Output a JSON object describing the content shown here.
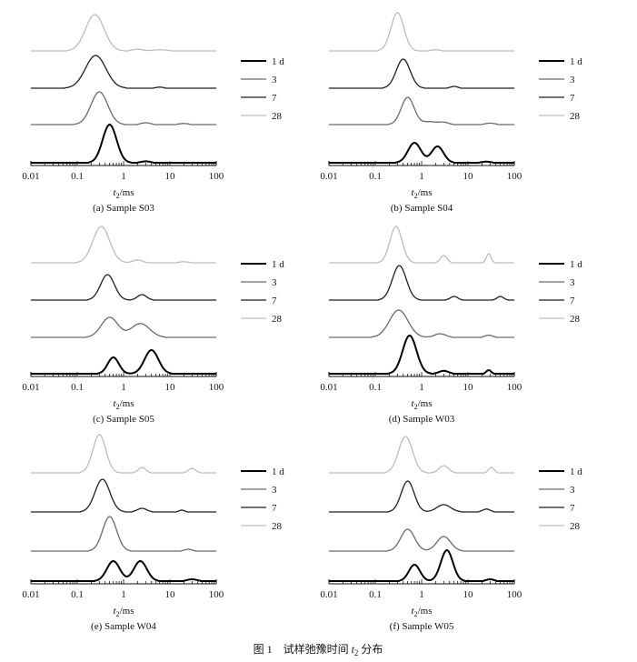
{
  "figure_caption": {
    "prefix": "图 1　试样弛豫时间 ",
    "var": "t",
    "sub": "2",
    "suffix": " 分布"
  },
  "legend": {
    "entries": [
      "1 d",
      "3",
      "7",
      "28"
    ],
    "colors": [
      "#000000",
      "#6a6a6a",
      "#1e1e1e",
      "#bdbdbd"
    ]
  },
  "chart_data": [
    {
      "type": "line",
      "caption": "(a) Sample S03",
      "xscale": "log",
      "xlim": [
        0.01,
        100
      ],
      "xticks": [
        "0.01",
        "0.1",
        "1",
        "10",
        "100"
      ],
      "xlabel": {
        "var": "t",
        "sub": "2",
        "unit": "/ms"
      },
      "legend_position": "right",
      "grid": false,
      "series": [
        {
          "name": "28",
          "peaks": [
            {
              "t2": 0.24,
              "amp": 1.0,
              "w": 0.2
            },
            {
              "t2": 2,
              "amp": 0.05,
              "w": 0.1
            },
            {
              "t2": 6,
              "amp": 0.03,
              "w": 0.15
            }
          ]
        },
        {
          "name": "7",
          "peaks": [
            {
              "t2": 0.25,
              "amp": 0.9,
              "w": 0.22
            },
            {
              "t2": 6,
              "amp": 0.03,
              "w": 0.08
            }
          ]
        },
        {
          "name": "3",
          "peaks": [
            {
              "t2": 0.3,
              "amp": 0.9,
              "w": 0.18
            },
            {
              "t2": 3,
              "amp": 0.05,
              "w": 0.1
            },
            {
              "t2": 20,
              "amp": 0.03,
              "w": 0.1
            }
          ]
        },
        {
          "name": "1 d",
          "peaks": [
            {
              "t2": 0.5,
              "amp": 1.05,
              "w": 0.15
            },
            {
              "t2": 3,
              "amp": 0.04,
              "w": 0.1
            }
          ]
        }
      ]
    },
    {
      "type": "line",
      "caption": "(b) Sample S04",
      "xscale": "log",
      "xlim": [
        0.01,
        100
      ],
      "xticks": [
        "0.01",
        "0.1",
        "1",
        "10",
        "100"
      ],
      "xlabel": {
        "var": "t",
        "sub": "2",
        "unit": "/ms"
      },
      "legend_position": "right",
      "grid": false,
      "series": [
        {
          "name": "28",
          "peaks": [
            {
              "t2": 0.3,
              "amp": 1.05,
              "w": 0.14
            },
            {
              "t2": 2,
              "amp": 0.03,
              "w": 0.1
            }
          ]
        },
        {
          "name": "7",
          "peaks": [
            {
              "t2": 0.4,
              "amp": 0.8,
              "w": 0.15
            },
            {
              "t2": 5,
              "amp": 0.05,
              "w": 0.08
            }
          ]
        },
        {
          "name": "3",
          "peaks": [
            {
              "t2": 0.5,
              "amp": 0.75,
              "w": 0.14
            },
            {
              "t2": 1.5,
              "amp": 0.08,
              "w": 0.15
            },
            {
              "t2": 3,
              "amp": 0.06,
              "w": 0.1
            },
            {
              "t2": 30,
              "amp": 0.04,
              "w": 0.1
            }
          ]
        },
        {
          "name": "1 d",
          "peaks": [
            {
              "t2": 0.7,
              "amp": 0.55,
              "w": 0.14
            },
            {
              "t2": 2.2,
              "amp": 0.45,
              "w": 0.13
            },
            {
              "t2": 25,
              "amp": 0.03,
              "w": 0.1
            }
          ]
        }
      ]
    },
    {
      "type": "line",
      "caption": "(c) Sample S05",
      "xscale": "log",
      "xlim": [
        0.01,
        100
      ],
      "xticks": [
        "0.01",
        "0.1",
        "1",
        "10",
        "100"
      ],
      "xlabel": {
        "var": "t",
        "sub": "2",
        "unit": "/ms"
      },
      "legend_position": "right",
      "grid": false,
      "series": [
        {
          "name": "28",
          "peaks": [
            {
              "t2": 0.33,
              "amp": 1.0,
              "w": 0.18
            },
            {
              "t2": 2,
              "amp": 0.08,
              "w": 0.1
            },
            {
              "t2": 20,
              "amp": 0.03,
              "w": 0.1
            }
          ]
        },
        {
          "name": "7",
          "peaks": [
            {
              "t2": 0.45,
              "amp": 0.7,
              "w": 0.15
            },
            {
              "t2": 2.5,
              "amp": 0.15,
              "w": 0.1
            }
          ]
        },
        {
          "name": "3",
          "peaks": [
            {
              "t2": 0.5,
              "amp": 0.55,
              "w": 0.18
            },
            {
              "t2": 2.3,
              "amp": 0.38,
              "w": 0.2
            }
          ]
        },
        {
          "name": "1 d",
          "peaks": [
            {
              "t2": 0.6,
              "amp": 0.45,
              "w": 0.12
            },
            {
              "t2": 4,
              "amp": 0.65,
              "w": 0.15
            }
          ]
        }
      ]
    },
    {
      "type": "line",
      "caption": "(d) Sample W03",
      "xscale": "log",
      "xlim": [
        0.01,
        100
      ],
      "xticks": [
        "0.01",
        "0.1",
        "1",
        "10",
        "100"
      ],
      "xlabel": {
        "var": "t",
        "sub": "2",
        "unit": "/ms"
      },
      "legend_position": "right",
      "grid": false,
      "series": [
        {
          "name": "28",
          "peaks": [
            {
              "t2": 0.28,
              "amp": 1.0,
              "w": 0.13
            },
            {
              "t2": 3,
              "amp": 0.2,
              "w": 0.07
            },
            {
              "t2": 28,
              "amp": 0.25,
              "w": 0.05
            }
          ]
        },
        {
          "name": "7",
          "peaks": [
            {
              "t2": 0.33,
              "amp": 0.95,
              "w": 0.15
            },
            {
              "t2": 5,
              "amp": 0.1,
              "w": 0.08
            },
            {
              "t2": 50,
              "amp": 0.1,
              "w": 0.07
            }
          ]
        },
        {
          "name": "3",
          "peaks": [
            {
              "t2": 0.32,
              "amp": 0.75,
              "w": 0.2
            },
            {
              "t2": 2.5,
              "amp": 0.1,
              "w": 0.12
            },
            {
              "t2": 28,
              "amp": 0.06,
              "w": 0.08
            }
          ]
        },
        {
          "name": "1 d",
          "peaks": [
            {
              "t2": 0.55,
              "amp": 1.05,
              "w": 0.15
            },
            {
              "t2": 3,
              "amp": 0.08,
              "w": 0.1
            },
            {
              "t2": 28,
              "amp": 0.1,
              "w": 0.05
            }
          ]
        }
      ]
    },
    {
      "type": "line",
      "caption": "(e) Sample W04",
      "xscale": "log",
      "xlim": [
        0.01,
        100
      ],
      "xticks": [
        "0.01",
        "0.1",
        "1",
        "10",
        "100"
      ],
      "xlabel": {
        "var": "t",
        "sub": "2",
        "unit": "/ms"
      },
      "legend_position": "right",
      "grid": false,
      "series": [
        {
          "name": "28",
          "peaks": [
            {
              "t2": 0.3,
              "amp": 1.05,
              "w": 0.14
            },
            {
              "t2": 2.5,
              "amp": 0.15,
              "w": 0.08
            },
            {
              "t2": 30,
              "amp": 0.12,
              "w": 0.08
            }
          ]
        },
        {
          "name": "7",
          "peaks": [
            {
              "t2": 0.35,
              "amp": 0.9,
              "w": 0.16
            },
            {
              "t2": 2.5,
              "amp": 0.1,
              "w": 0.1
            },
            {
              "t2": 18,
              "amp": 0.05,
              "w": 0.06
            }
          ]
        },
        {
          "name": "3",
          "peaks": [
            {
              "t2": 0.5,
              "amp": 0.95,
              "w": 0.15
            },
            {
              "t2": 25,
              "amp": 0.05,
              "w": 0.08
            }
          ]
        },
        {
          "name": "1 d",
          "peaks": [
            {
              "t2": 0.6,
              "amp": 0.55,
              "w": 0.14
            },
            {
              "t2": 2.3,
              "amp": 0.55,
              "w": 0.14
            },
            {
              "t2": 30,
              "amp": 0.05,
              "w": 0.1
            }
          ]
        }
      ]
    },
    {
      "type": "line",
      "caption": "(f) Sample W05",
      "xscale": "log",
      "xlim": [
        0.01,
        100
      ],
      "xticks": [
        "0.01",
        "0.1",
        "1",
        "10",
        "100"
      ],
      "xlabel": {
        "var": "t",
        "sub": "2",
        "unit": "/ms"
      },
      "legend_position": "right",
      "grid": false,
      "series": [
        {
          "name": "28",
          "peaks": [
            {
              "t2": 0.45,
              "amp": 1.0,
              "w": 0.15
            },
            {
              "t2": 3,
              "amp": 0.2,
              "w": 0.1
            },
            {
              "t2": 32,
              "amp": 0.15,
              "w": 0.06
            }
          ]
        },
        {
          "name": "7",
          "peaks": [
            {
              "t2": 0.5,
              "amp": 0.85,
              "w": 0.14
            },
            {
              "t2": 3,
              "amp": 0.2,
              "w": 0.15
            },
            {
              "t2": 25,
              "amp": 0.08,
              "w": 0.08
            }
          ]
        },
        {
          "name": "3",
          "peaks": [
            {
              "t2": 0.5,
              "amp": 0.6,
              "w": 0.15
            },
            {
              "t2": 3,
              "amp": 0.4,
              "w": 0.15
            }
          ]
        },
        {
          "name": "1 d",
          "peaks": [
            {
              "t2": 0.7,
              "amp": 0.45,
              "w": 0.12
            },
            {
              "t2": 3.5,
              "amp": 0.85,
              "w": 0.13
            },
            {
              "t2": 30,
              "amp": 0.05,
              "w": 0.08
            }
          ]
        }
      ]
    }
  ]
}
